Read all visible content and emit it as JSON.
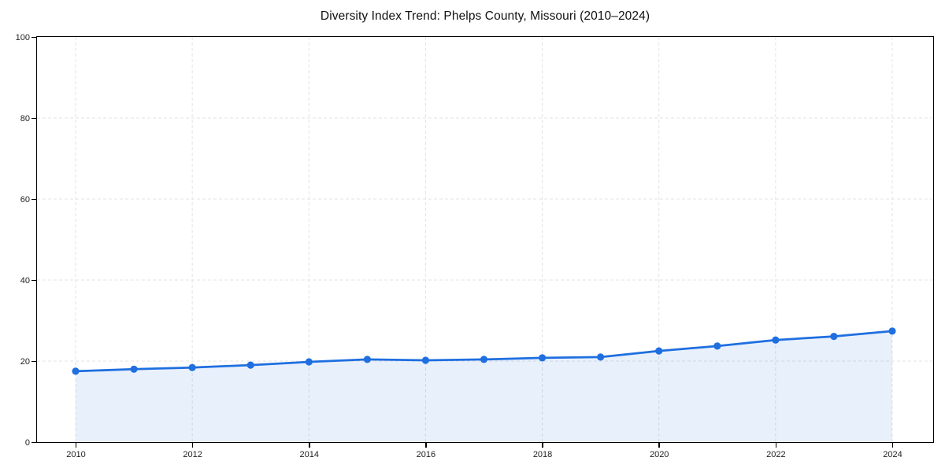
{
  "chart_data": {
    "type": "area",
    "title": "Diversity Index Trend: Phelps County, Missouri (2010–2024)",
    "xlabel": "",
    "ylabel": "",
    "x": [
      2010,
      2011,
      2012,
      2013,
      2014,
      2015,
      2016,
      2017,
      2018,
      2019,
      2020,
      2021,
      2022,
      2023,
      2024
    ],
    "series": [
      {
        "name": "Diversity Index",
        "values": [
          17.5,
          18.0,
          18.4,
          19.0,
          19.8,
          20.4,
          20.2,
          20.4,
          20.8,
          21.0,
          22.5,
          23.7,
          25.2,
          26.1,
          27.4
        ]
      }
    ],
    "xticks": [
      2010,
      2012,
      2014,
      2016,
      2018,
      2020,
      2022,
      2024
    ],
    "yticks": [
      0,
      20,
      40,
      60,
      80,
      100
    ],
    "ylim": [
      0,
      100
    ],
    "grid": "dashed",
    "legend": "none",
    "colors": {
      "line": "#1f6fe0",
      "marker": "#1f6fe0",
      "fill": "rgba(31,111,224,0.10)",
      "grid": "#e3e3e3",
      "axis": "#000000",
      "tick_text": "#222222",
      "title_text": "#111111",
      "background": "#ffffff"
    }
  }
}
